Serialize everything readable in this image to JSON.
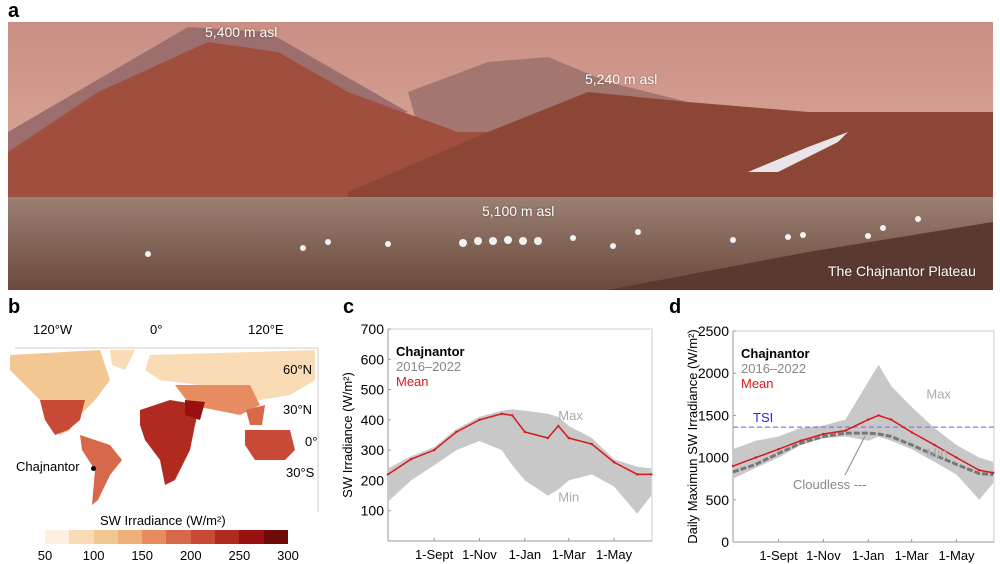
{
  "panels": {
    "a": {
      "label": "a",
      "elevations": [
        "5,400 m asl",
        "5,240 m asl",
        "5,100 m asl"
      ],
      "caption": "The Chajnantor Plateau"
    },
    "b": {
      "label": "b",
      "lon_ticks": [
        "120°W",
        "0°",
        "120°E"
      ],
      "lat_ticks": [
        "60°N",
        "30°N",
        "0°",
        "30°S"
      ],
      "site": "Chajnantor",
      "colorbar_title": "SW Irradiance (W/m²)",
      "colorbar_ticks": [
        "50",
        "100",
        "150",
        "200",
        "250",
        "300"
      ],
      "colorbar_colors": [
        "#fdf0e0",
        "#f9dcb5",
        "#f3c792",
        "#eeaf7a",
        "#e68c60",
        "#d8684a",
        "#c84a36",
        "#b02a20",
        "#981010",
        "#6e0a0a"
      ]
    },
    "c": {
      "label": "c"
    },
    "d": {
      "label": "d"
    }
  },
  "chart_data": [
    {
      "type": "line",
      "panel": "c",
      "ylabel": "SW Irradiance (W/m²)",
      "ylim": [
        0,
        700
      ],
      "yticks": [
        100,
        200,
        300,
        400,
        500,
        600,
        700
      ],
      "xticks": [
        "1-Sept",
        "1-Nov",
        "1-Jan",
        "1-Mar",
        "1-May"
      ],
      "legend": {
        "site": "Chajnantor",
        "period": "2016–2022",
        "mean": "Mean"
      },
      "annotations": {
        "max": "Max",
        "min": "Min"
      },
      "x": [
        "1-Jul",
        "1-Aug",
        "1-Sept",
        "1-Oct",
        "1-Nov",
        "1-Dec",
        "15-Dec",
        "1-Jan",
        "1-Feb",
        "15-Feb",
        "1-Mar",
        "1-Apr",
        "1-May",
        "1-Jun",
        "20-Jun"
      ],
      "series": [
        {
          "name": "Mean",
          "color": "#d7191c",
          "values": [
            220,
            270,
            300,
            360,
            400,
            420,
            415,
            360,
            340,
            380,
            340,
            320,
            260,
            220,
            220
          ]
        },
        {
          "name": "Max",
          "color": "#c8c8c8",
          "values": [
            240,
            280,
            310,
            370,
            410,
            430,
            435,
            430,
            420,
            410,
            380,
            340,
            270,
            245,
            240
          ]
        },
        {
          "name": "Min",
          "color": "#c8c8c8",
          "values": [
            130,
            200,
            250,
            300,
            330,
            300,
            250,
            200,
            150,
            170,
            200,
            220,
            180,
            90,
            150
          ]
        }
      ]
    },
    {
      "type": "line",
      "panel": "d",
      "ylabel": "Daily Maximun SW Irradiance (W/m²)",
      "ylim": [
        0,
        2500
      ],
      "yticks": [
        0,
        500,
        1000,
        1500,
        2000,
        2500
      ],
      "xticks": [
        "1-Sept",
        "1-Nov",
        "1-Jan",
        "1-Mar",
        "1-May"
      ],
      "legend": {
        "site": "Chajnantor",
        "period": "2016–2022",
        "mean": "Mean"
      },
      "annotations": {
        "max": "Max",
        "min": "Min",
        "tsi": "TSI",
        "cloudless": "Cloudless ---"
      },
      "tsi_value": 1361,
      "x": [
        "1-Jul",
        "1-Aug",
        "1-Sept",
        "1-Oct",
        "1-Nov",
        "1-Dec",
        "1-Jan",
        "15-Jan",
        "1-Feb",
        "1-Mar",
        "1-Apr",
        "1-May",
        "1-Jun",
        "20-Jun"
      ],
      "series": [
        {
          "name": "Mean",
          "color": "#d7191c",
          "values": [
            900,
            1000,
            1100,
            1200,
            1280,
            1320,
            1450,
            1500,
            1450,
            1300,
            1150,
            1000,
            850,
            820
          ]
        },
        {
          "name": "Cloudless",
          "color": "#777777",
          "values": [
            830,
            920,
            1050,
            1170,
            1250,
            1290,
            1290,
            1280,
            1250,
            1150,
            1030,
            920,
            810,
            800
          ]
        },
        {
          "name": "Max",
          "color": "#c8c8c8",
          "values": [
            1100,
            1200,
            1250,
            1350,
            1380,
            1450,
            1900,
            2100,
            1850,
            1600,
            1350,
            1150,
            1000,
            950
          ]
        },
        {
          "name": "Min",
          "color": "#c8c8c8",
          "values": [
            750,
            880,
            1000,
            1150,
            1230,
            1250,
            1200,
            1250,
            1200,
            1100,
            950,
            800,
            500,
            700
          ]
        }
      ]
    }
  ]
}
